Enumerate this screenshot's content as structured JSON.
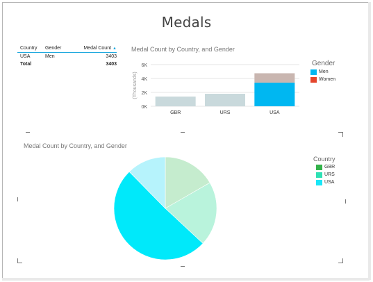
{
  "title": "Medals",
  "table": {
    "headers": {
      "country": "Country",
      "gender": "Gender",
      "count": "Medal Count"
    },
    "rows": [
      {
        "country": "USA",
        "gender": "Men",
        "count": "3403"
      }
    ],
    "total_label": "Total",
    "total_value": "3403"
  },
  "bar_visual": {
    "title": "Medal Count by Country, and Gender",
    "legend_title": "Gender",
    "legend": [
      {
        "label": "Men",
        "color": "#00b7f1"
      },
      {
        "label": "Women",
        "color": "#e4452c"
      }
    ]
  },
  "pie_visual": {
    "title": "Medal Count by Country, and Gender",
    "legend_title": "Country",
    "legend": [
      {
        "label": "GBR",
        "color": "#34b24b"
      },
      {
        "label": "URS",
        "color": "#2ee0b4"
      },
      {
        "label": "USA",
        "color": "#19e6f7"
      }
    ]
  },
  "chart_data": [
    {
      "type": "bar",
      "title": "Medal Count by Country, and Gender",
      "ylabel": "(Thousands)",
      "categories": [
        "GBR",
        "URS",
        "USA"
      ],
      "ytick_labels": [
        "0K",
        "2K",
        "4K",
        "6K"
      ],
      "ylim": [
        0,
        6000
      ],
      "stacked": true,
      "series": [
        {
          "name": "Men",
          "values": [
            1400,
            1800,
            3403
          ],
          "colors": [
            "#c9d9dc",
            "#c9d9dc",
            "#00b7f1"
          ]
        },
        {
          "name": "Women",
          "values": [
            0,
            0,
            1350
          ],
          "colors": [
            "#c9d9dc",
            "#c9d9dc",
            "#c9b6b0"
          ]
        }
      ]
    },
    {
      "type": "pie",
      "title": "Medal Count by Country, and Gender",
      "categories": [
        "GBR",
        "URS",
        "USA"
      ],
      "values": [
        1120,
        1360,
        3403
      ],
      "colors": [
        "#c5ecce",
        "#b9f3dc",
        "#00e9fa"
      ],
      "extra_slice_color": "#b6f3fc"
    }
  ]
}
